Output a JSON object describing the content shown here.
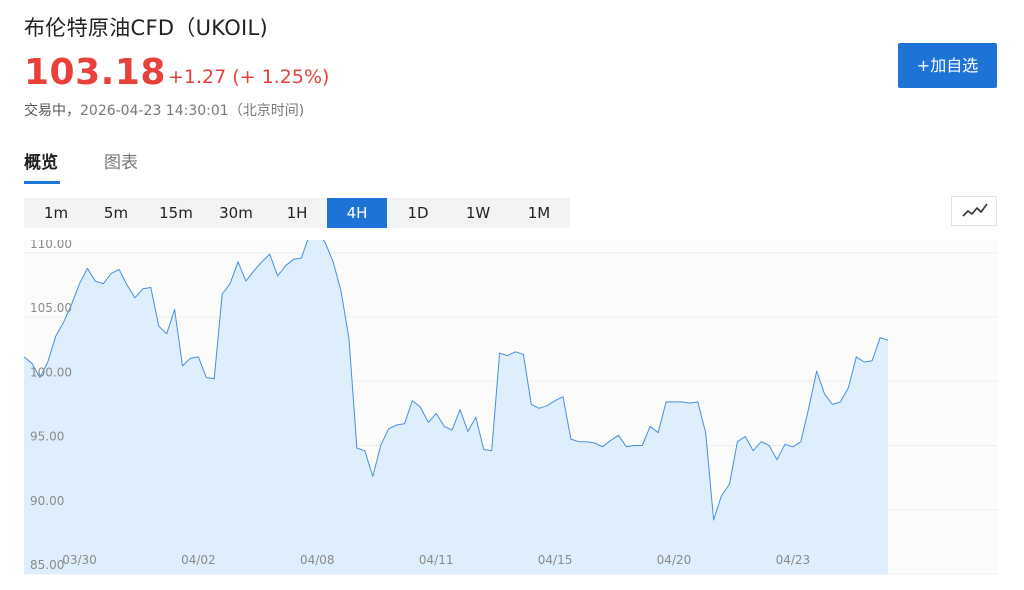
{
  "header": {
    "title": "布伦特原油CFD（UKOIL)",
    "price": "103.18",
    "change": "+1.27 (+ 1.25%)",
    "status_label": "交易中，",
    "timestamp": "2026-04-23 14:30:01（北京时间)"
  },
  "add_button_label": "+加自选",
  "tabs": [
    {
      "label": "概览",
      "active": true
    },
    {
      "label": "图表",
      "active": false
    }
  ],
  "intervals": [
    {
      "label": "1m",
      "active": false
    },
    {
      "label": "5m",
      "active": false
    },
    {
      "label": "15m",
      "active": false
    },
    {
      "label": "30m",
      "active": false
    },
    {
      "label": "1H",
      "active": false
    },
    {
      "label": "4H",
      "active": true
    },
    {
      "label": "1D",
      "active": false
    },
    {
      "label": "1W",
      "active": false
    },
    {
      "label": "1M",
      "active": false
    }
  ],
  "chart_type_icon": "line-chart-icon",
  "colors": {
    "accent": "#1e74d6",
    "up": "#e8413a",
    "line": "#4a90d9",
    "area": "#deeefc",
    "grid": "#ececec",
    "axis_text": "#8a8a8a"
  },
  "chart_data": {
    "type": "area",
    "ylim": [
      85,
      111
    ],
    "grid": true,
    "y_ticks": [
      {
        "value": 110,
        "label": "110.00"
      },
      {
        "value": 105,
        "label": "105.00"
      },
      {
        "value": 100,
        "label": "100.00"
      },
      {
        "value": 95,
        "label": "95.00"
      },
      {
        "value": 90,
        "label": "90.00"
      },
      {
        "value": 85,
        "label": "85.00"
      }
    ],
    "x_tick_labels": [
      {
        "index": 7,
        "label": "03/30"
      },
      {
        "index": 22,
        "label": "04/02"
      },
      {
        "index": 37,
        "label": "04/08"
      },
      {
        "index": 52,
        "label": "04/11"
      },
      {
        "index": 67,
        "label": "04/15"
      },
      {
        "index": 82,
        "label": "04/20"
      },
      {
        "index": 97,
        "label": "04/23"
      }
    ],
    "values": [
      101.9,
      101.4,
      100.3,
      101.5,
      103.5,
      104.6,
      106.0,
      107.6,
      108.8,
      107.8,
      107.6,
      108.4,
      108.7,
      107.5,
      106.5,
      107.2,
      107.3,
      104.3,
      103.7,
      105.6,
      101.2,
      101.8,
      101.9,
      100.3,
      100.2,
      106.8,
      107.6,
      109.3,
      107.8,
      108.6,
      109.3,
      109.9,
      108.2,
      109.0,
      109.5,
      109.6,
      111.4,
      111.6,
      110.8,
      109.3,
      107.0,
      103.3,
      94.8,
      94.6,
      92.6,
      95.0,
      96.3,
      96.6,
      96.7,
      98.5,
      98.0,
      96.8,
      97.5,
      96.5,
      96.2,
      97.8,
      96.1,
      97.2,
      94.7,
      94.6,
      102.2,
      102.0,
      102.3,
      102.1,
      98.2,
      97.9,
      98.1,
      98.5,
      98.8,
      95.5,
      95.3,
      95.3,
      95.2,
      94.9,
      95.4,
      95.8,
      94.9,
      95.0,
      95.0,
      96.5,
      96.0,
      98.4,
      98.4,
      98.4,
      98.3,
      98.4,
      96.0,
      89.2,
      91.1,
      92.0,
      95.3,
      95.7,
      94.6,
      95.3,
      95.0,
      93.9,
      95.1,
      94.9,
      95.3,
      97.9,
      100.8,
      99.0,
      98.2,
      98.4,
      99.5,
      101.9,
      101.5,
      101.6,
      103.4,
      103.2
    ]
  }
}
